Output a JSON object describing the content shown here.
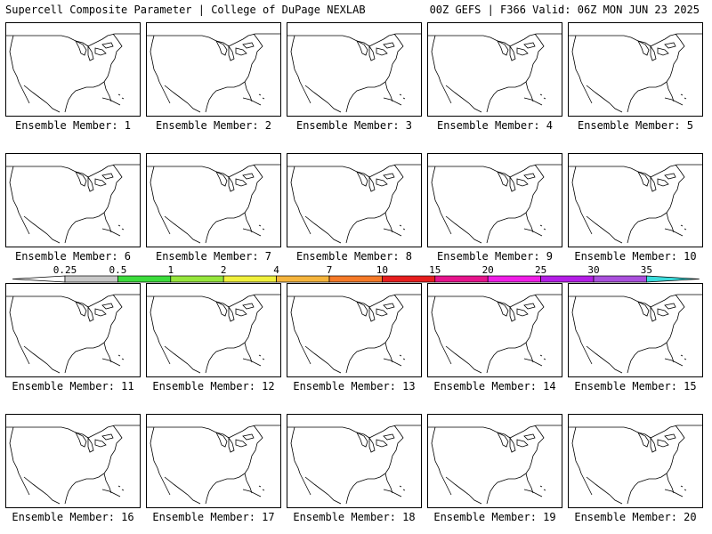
{
  "header": {
    "title": "Supercell Composite Parameter | College of DuPage NEXLAB",
    "run_info": "00Z GEFS | F366 Valid: 06Z MON JUN 23 2025"
  },
  "colorbar": {
    "labels": [
      "0.25",
      "0.5",
      "1",
      "2",
      "4",
      "7",
      "10",
      "15",
      "20",
      "25",
      "30",
      "35"
    ],
    "colors": [
      "#c8c8c8",
      "#3cdc3c",
      "#96e63c",
      "#f0f03c",
      "#f5b43c",
      "#f57a28",
      "#e61e1e",
      "#e6148c",
      "#f01ee6",
      "#b41ee6",
      "#aa50dc",
      "#3cdcdc"
    ]
  },
  "panels": [
    {
      "label": "Ensemble Member: 1"
    },
    {
      "label": "Ensemble Member: 2"
    },
    {
      "label": "Ensemble Member: 3"
    },
    {
      "label": "Ensemble Member: 4"
    },
    {
      "label": "Ensemble Member: 5"
    },
    {
      "label": "Ensemble Member: 6"
    },
    {
      "label": "Ensemble Member: 7"
    },
    {
      "label": "Ensemble Member: 8"
    },
    {
      "label": "Ensemble Member: 9"
    },
    {
      "label": "Ensemble Member: 10"
    },
    {
      "label": "Ensemble Member: 11"
    },
    {
      "label": "Ensemble Member: 12"
    },
    {
      "label": "Ensemble Member: 13"
    },
    {
      "label": "Ensemble Member: 14"
    },
    {
      "label": "Ensemble Member: 15"
    },
    {
      "label": "Ensemble Member: 16"
    },
    {
      "label": "Ensemble Member: 17"
    },
    {
      "label": "Ensemble Member: 18"
    },
    {
      "label": "Ensemble Member: 19"
    },
    {
      "label": "Ensemble Member: 20"
    }
  ]
}
